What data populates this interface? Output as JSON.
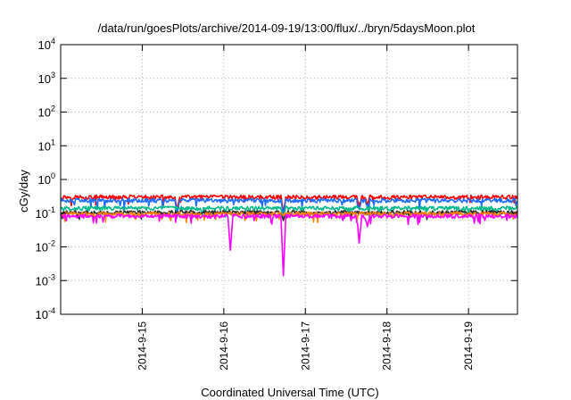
{
  "chart_data": {
    "type": "line",
    "title": "/data/run/goesPlots/archive/2014-09-19/13:00/flux/../bryn/5daysMoon.plot",
    "xlabel": "Coordinated Universal Time (UTC)",
    "ylabel": "cGy/day",
    "yscale": "log",
    "ylim_exp": [
      -4,
      4
    ],
    "yticks": [
      {
        "base": "10",
        "exp": "-4"
      },
      {
        "base": "10",
        "exp": "-3"
      },
      {
        "base": "10",
        "exp": "-2"
      },
      {
        "base": "10",
        "exp": "-1"
      },
      {
        "base": "10",
        "exp": "0"
      },
      {
        "base": "10",
        "exp": "1"
      },
      {
        "base": "10",
        "exp": "2"
      },
      {
        "base": "10",
        "exp": "3"
      },
      {
        "base": "10",
        "exp": "4"
      }
    ],
    "xlim_days": [
      0,
      5.6
    ],
    "xticks": [
      {
        "label": "2014-9-15",
        "day": 1.0
      },
      {
        "label": "2014-9-16",
        "day": 2.0
      },
      {
        "label": "2014-9-17",
        "day": 3.0
      },
      {
        "label": "2014-9-18",
        "day": 4.0
      },
      {
        "label": "2014-9-19",
        "day": 5.0
      }
    ],
    "grid": true,
    "series": [
      {
        "color": "#ff0000",
        "base": 0.3,
        "dips": [
          [
            1.43,
            0.13
          ],
          [
            2.73,
            0.11
          ],
          [
            3.66,
            0.16
          ],
          [
            3.76,
            0.18
          ]
        ]
      },
      {
        "color": "#1e6bff",
        "base": 0.24,
        "dips": [
          [
            1.43,
            0.11
          ],
          [
            2.73,
            0.09
          ],
          [
            3.66,
            0.13
          ],
          [
            3.76,
            0.15
          ]
        ]
      },
      {
        "color": "#00b88a",
        "base": 0.14,
        "dips": [
          [
            2.73,
            0.08
          ]
        ]
      },
      {
        "color": "#2b2b2b",
        "base": 0.105,
        "dips": [
          [
            2.73,
            0.06
          ]
        ]
      },
      {
        "color": "#ff8000",
        "base": 0.095,
        "dips": []
      },
      {
        "color": "#ff00ff",
        "base": 0.082,
        "dips": [
          [
            2.08,
            0.008
          ],
          [
            2.73,
            0.0014
          ],
          [
            3.66,
            0.013
          ],
          [
            3.76,
            0.04
          ]
        ]
      }
    ]
  }
}
